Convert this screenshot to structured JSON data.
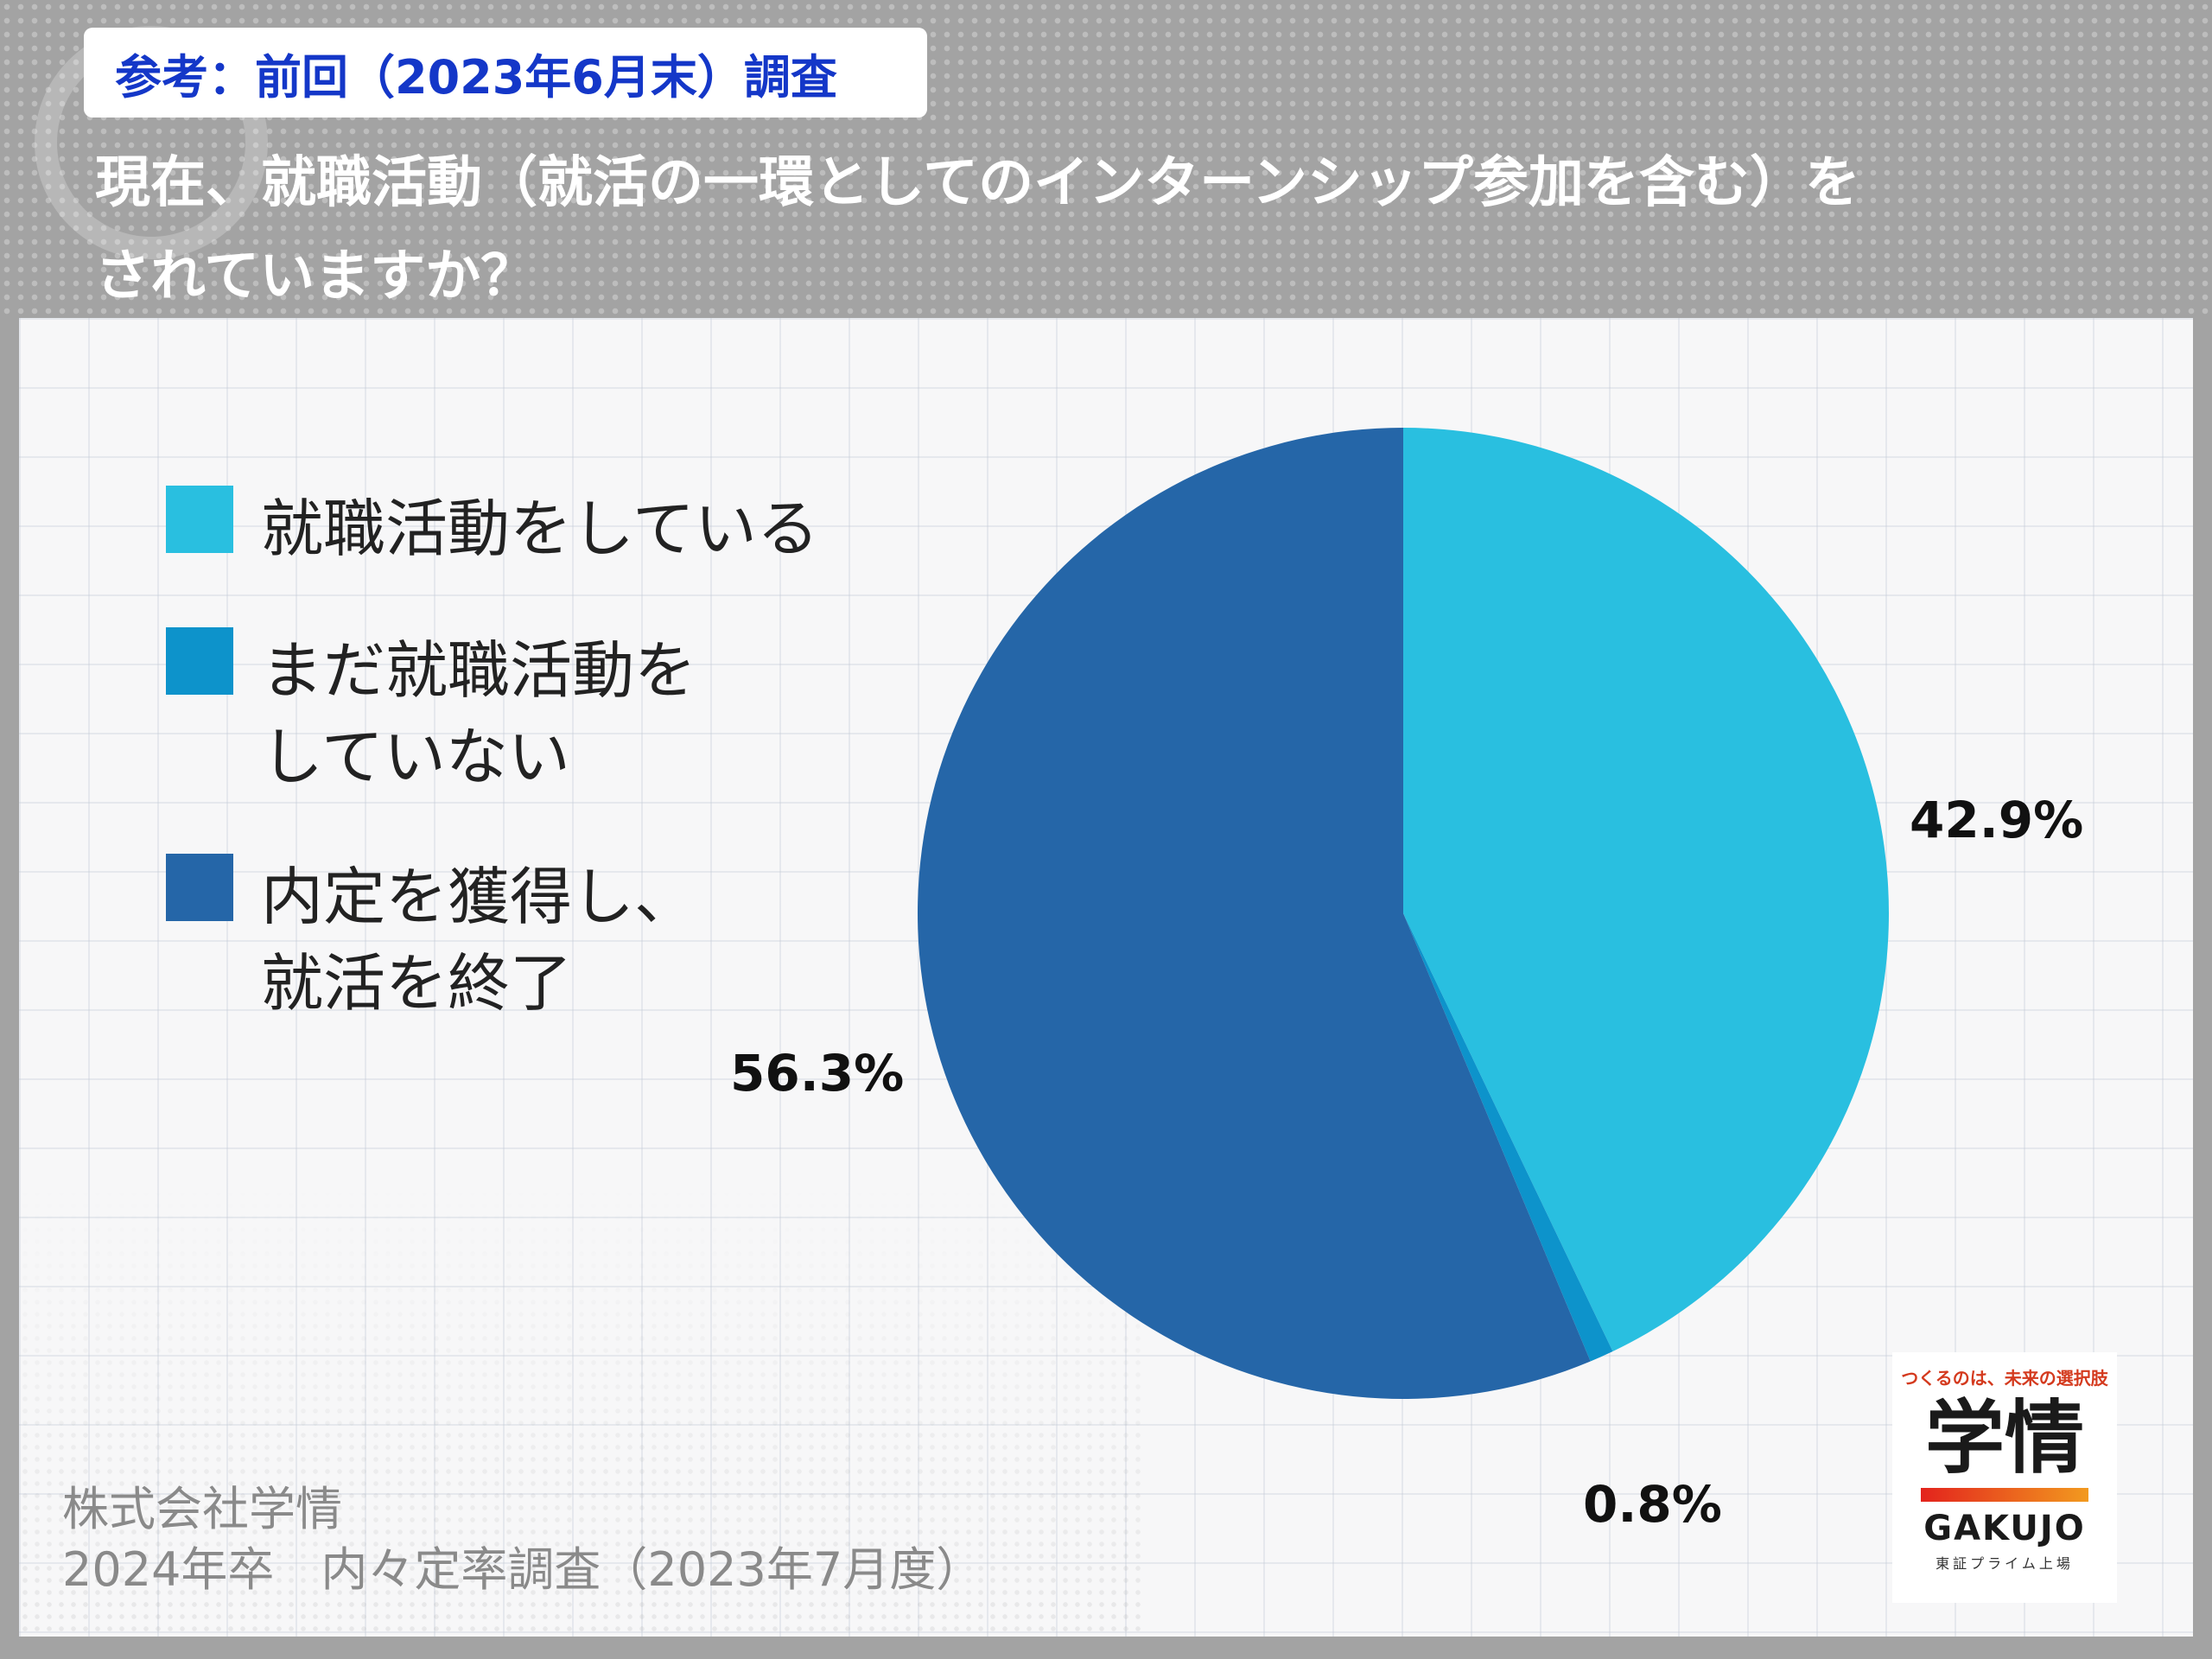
{
  "header": {
    "reference_tag": "参考：前回（2023年6月末）調査",
    "question_line1": "現在、就職活動（就活の一環としてのインターンシップ参加を含む）を",
    "question_line2": "されていますか？"
  },
  "chart_data": {
    "type": "pie",
    "start_angle": "12 o'clock",
    "direction": "clockwise",
    "legend_placement": "left",
    "slices": [
      {
        "label_lines": [
          "就職活動をしている"
        ],
        "value": 42.9,
        "value_label": "42.9%",
        "color": "#29bfe0"
      },
      {
        "label_lines": [
          "まだ就職活動を",
          "していない"
        ],
        "value": 0.8,
        "value_label": "0.8%",
        "color": "#0d93cb"
      },
      {
        "label_lines": [
          "内定を獲得し、",
          "就活を終了"
        ],
        "value": 56.3,
        "value_label": "56.3%",
        "color": "#2566a8"
      }
    ]
  },
  "source": {
    "line1": "株式会社学情",
    "line2": "2024年卒　内々定率調査（2023年7月度）"
  },
  "logo": {
    "tagline": "つくるのは、未来の選択肢",
    "kanji": "学情",
    "roman": "GAKUJO",
    "sub": "東証プライム上場"
  }
}
